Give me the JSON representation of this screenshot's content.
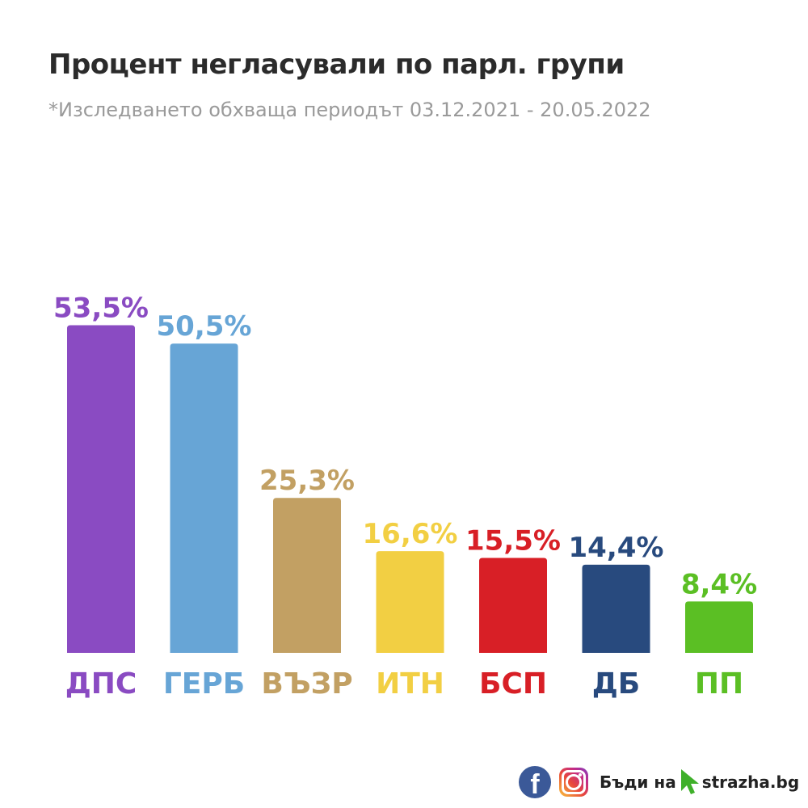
{
  "header": {
    "title": "Процент негласували по парл. групи",
    "subtitle": "*Изследването обхваща периодът 03.12.2021 - 20.05.2022"
  },
  "chart_data": {
    "type": "bar",
    "title": "Процент негласували по парл. групи",
    "subtitle": "*Изследването обхваща периодът 03.12.2021 - 20.05.2022",
    "categories": [
      "ДПС",
      "ГЕРБ",
      "ВЪЗР",
      "ИТН",
      "БСП",
      "ДБ",
      "ПП"
    ],
    "values": [
      53.5,
      50.5,
      25.3,
      16.6,
      15.5,
      14.4,
      8.4
    ],
    "value_labels": [
      "53,5%",
      "50,5%",
      "25,3%",
      "16,6%",
      "15,5%",
      "14,4%",
      "8,4%"
    ],
    "colors": [
      "#8a4bc2",
      "#67a5d6",
      "#c2a063",
      "#f2cf43",
      "#d81f26",
      "#284a7e",
      "#5bbf24"
    ],
    "xlabel": "",
    "ylabel": "",
    "ylim": [
      0,
      100
    ],
    "grid": false,
    "legend": "none"
  },
  "footer": {
    "facebook_icon": "facebook-icon",
    "facebook_glyph": "f",
    "facebook_color": "#3b5998",
    "instagram_icon": "instagram-icon",
    "prefix": "Бъди на",
    "cursor_icon": "cursor-arrow-icon",
    "cursor_color": "#3fb02a",
    "site": "strazha.bg"
  }
}
